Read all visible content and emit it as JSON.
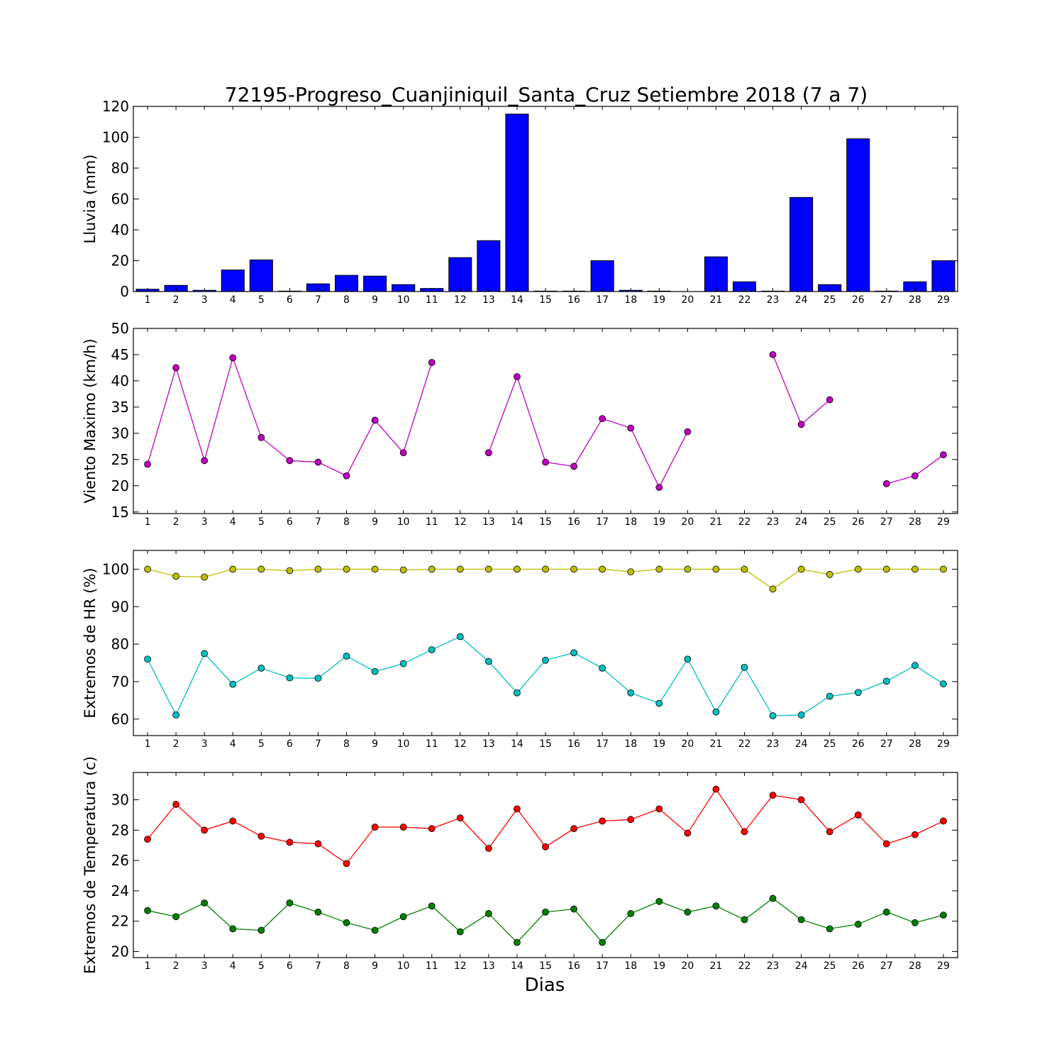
{
  "figure": {
    "title": "72195-Progreso_Cuanjiniquil_Santa_Cruz Setiembre 2018  (7 a 7)",
    "xlabel": "Dias"
  },
  "chart_data": [
    {
      "type": "bar",
      "ylabel": "Lluvia (mm)",
      "ylim": [
        0,
        120
      ],
      "yticks": [
        0,
        20,
        40,
        60,
        80,
        100,
        120
      ],
      "categories": [
        1,
        2,
        3,
        4,
        5,
        6,
        7,
        8,
        9,
        10,
        11,
        12,
        13,
        14,
        15,
        16,
        17,
        18,
        19,
        20,
        21,
        22,
        23,
        24,
        25,
        26,
        27,
        28,
        29
      ],
      "series": [
        {
          "color": "#0000ff",
          "values": [
            1.5,
            4,
            0.8,
            14,
            20.5,
            0.3,
            5,
            10.5,
            10,
            4.5,
            2,
            22,
            33,
            115,
            0.3,
            0.3,
            20,
            0.8,
            0.3,
            0,
            22.5,
            6.3,
            0.3,
            61,
            4.5,
            99,
            0.3,
            6.3,
            20
          ]
        }
      ]
    },
    {
      "type": "line",
      "ylabel": "Viento Maximo (km/h)",
      "ylim": [
        14.7,
        50
      ],
      "yticks": [
        15,
        20,
        25,
        30,
        35,
        40,
        45,
        50
      ],
      "x": [
        1,
        2,
        3,
        4,
        5,
        6,
        7,
        8,
        9,
        10,
        11,
        12,
        13,
        14,
        15,
        16,
        17,
        18,
        19,
        20,
        21,
        22,
        23,
        24,
        25,
        26,
        27,
        28,
        29
      ],
      "series": [
        {
          "color": "#bf00bf",
          "values": [
            24.1,
            42.5,
            24.8,
            44.4,
            29.2,
            24.8,
            24.5,
            21.9,
            32.5,
            26.3,
            43.5,
            null,
            26.3,
            40.8,
            24.5,
            23.7,
            32.8,
            31,
            19.7,
            30.3,
            null,
            null,
            45,
            31.7,
            36.4,
            null,
            20.4,
            21.9,
            25.9
          ]
        }
      ]
    },
    {
      "type": "line",
      "ylabel": "Extremos de HR (%)",
      "ylim": [
        55.6,
        105
      ],
      "yticks": [
        60,
        70,
        80,
        90,
        100
      ],
      "x": [
        1,
        2,
        3,
        4,
        5,
        6,
        7,
        8,
        9,
        10,
        11,
        12,
        13,
        14,
        15,
        16,
        17,
        18,
        19,
        20,
        21,
        22,
        23,
        24,
        25,
        26,
        27,
        28,
        29
      ],
      "series": [
        {
          "color": "#bfbf00",
          "values": [
            100,
            98.1,
            97.9,
            100,
            100,
            99.6,
            100,
            100,
            100,
            99.8,
            100,
            100,
            100,
            100,
            100,
            100,
            100,
            99.3,
            100,
            100,
            100,
            100,
            94.7,
            100,
            98.6,
            100,
            100,
            100,
            100
          ]
        },
        {
          "color": "#00bfbf",
          "values": [
            76,
            61.1,
            77.5,
            69.3,
            73.6,
            71,
            70.9,
            76.8,
            72.7,
            74.8,
            78.5,
            82,
            75.4,
            67,
            75.7,
            77.7,
            73.6,
            67,
            64.2,
            76,
            61.9,
            73.8,
            60.9,
            61.1,
            66.1,
            67.1,
            70.1,
            74.3,
            69.4
          ]
        }
      ]
    },
    {
      "type": "line",
      "ylabel": "Extremos de Temperatura (c)",
      "ylim": [
        19.6,
        31.8
      ],
      "yticks": [
        20,
        22,
        24,
        26,
        28,
        30
      ],
      "x": [
        1,
        2,
        3,
        4,
        5,
        6,
        7,
        8,
        9,
        10,
        11,
        12,
        13,
        14,
        15,
        16,
        17,
        18,
        19,
        20,
        21,
        22,
        23,
        24,
        25,
        26,
        27,
        28,
        29
      ],
      "series": [
        {
          "color": "#ff0000",
          "values": [
            27.4,
            29.7,
            28,
            28.6,
            27.6,
            27.2,
            27.1,
            25.8,
            28.2,
            28.2,
            28.1,
            28.8,
            26.8,
            29.4,
            26.9,
            28.1,
            28.6,
            28.7,
            29.4,
            27.8,
            30.7,
            27.9,
            30.3,
            30,
            27.9,
            29,
            27.1,
            27.7,
            28.6
          ]
        },
        {
          "color": "#008000",
          "values": [
            22.7,
            22.3,
            23.2,
            21.5,
            21.4,
            23.2,
            22.6,
            21.9,
            21.4,
            22.3,
            23,
            21.3,
            22.5,
            20.6,
            22.6,
            22.8,
            20.6,
            22.5,
            23.3,
            22.6,
            23,
            22.1,
            23.5,
            22.1,
            21.5,
            21.8,
            22.6,
            21.9,
            22.4
          ]
        }
      ]
    }
  ]
}
